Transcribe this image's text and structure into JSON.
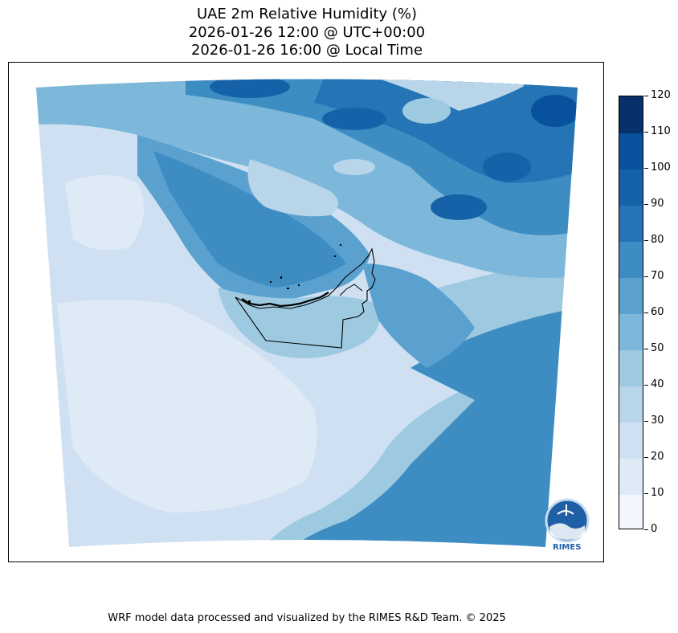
{
  "title": {
    "line1": "UAE 2m Relative Humidity (%)",
    "line2": "2026-01-26 12:00 @ UTC+00:00",
    "line3": "2026-01-26 16:00 @ Local Time"
  },
  "colorbar": {
    "ticks": [
      "0",
      "10",
      "20",
      "30",
      "40",
      "50",
      "60",
      "70",
      "80",
      "90",
      "100",
      "110",
      "120"
    ],
    "colors": [
      "#f0f6fc",
      "#deebf7",
      "#cfe0f2",
      "#b8d5ea",
      "#9ecae1",
      "#7db8da",
      "#5aa1cf",
      "#3d8dc3",
      "#2474b6",
      "#1562a8",
      "#08519c",
      "#08306b"
    ]
  },
  "logo": {
    "text": "RIMES"
  },
  "footer": "WRF model data processed and visualized by the RIMES R&D Team. © 2025"
}
